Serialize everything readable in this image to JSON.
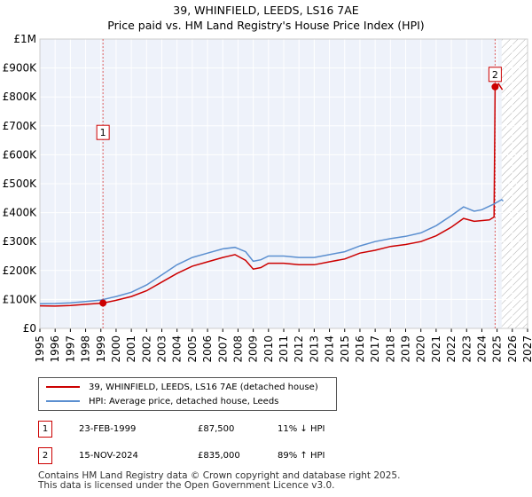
{
  "title": "39, WHINFIELD, LEEDS, LS16 7AE",
  "subtitle": "Price paid vs. HM Land Registry's House Price Index (HPI)",
  "colors": {
    "price": "#cc0000",
    "hpi": "#5b8fd0",
    "grid": "#dddddd",
    "plot_bg": "#eef2fa",
    "future_hatch": "#aaaaaa"
  },
  "chart_data": {
    "type": "line",
    "title": "39, WHINFIELD, LEEDS, LS16 7AE",
    "subtitle": "Price paid vs. HM Land Registry's House Price Index (HPI)",
    "xlim": [
      1995,
      2027
    ],
    "ylim": [
      0,
      1000000
    ],
    "y_ticks": [
      {
        "value": 0,
        "label": "£0"
      },
      {
        "value": 100000,
        "label": "£100K"
      },
      {
        "value": 200000,
        "label": "£200K"
      },
      {
        "value": 300000,
        "label": "£300K"
      },
      {
        "value": 400000,
        "label": "£400K"
      },
      {
        "value": 500000,
        "label": "£500K"
      },
      {
        "value": 600000,
        "label": "£600K"
      },
      {
        "value": 700000,
        "label": "£700K"
      },
      {
        "value": 800000,
        "label": "£800K"
      },
      {
        "value": 900000,
        "label": "£900K"
      },
      {
        "value": 1000000,
        "label": "£1M"
      }
    ],
    "x_ticks": [
      "1995",
      "1996",
      "1997",
      "1998",
      "1999",
      "2000",
      "2001",
      "2002",
      "2003",
      "2004",
      "2005",
      "2006",
      "2007",
      "2008",
      "2009",
      "2010",
      "2011",
      "2012",
      "2013",
      "2014",
      "2015",
      "2016",
      "2017",
      "2018",
      "2019",
      "2020",
      "2021",
      "2022",
      "2023",
      "2024",
      "2025",
      "2026",
      "2027"
    ],
    "forecast_start": 2025.3,
    "series": [
      {
        "name": "39, WHINFIELD, LEEDS, LS16 7AE (detached house)",
        "color": "#cc0000",
        "points": [
          [
            1995,
            78000
          ],
          [
            1996,
            77000
          ],
          [
            1997,
            79000
          ],
          [
            1998,
            83000
          ],
          [
            1999.14,
            87500
          ],
          [
            2000,
            97000
          ],
          [
            2001,
            110000
          ],
          [
            2002,
            130000
          ],
          [
            2003,
            160000
          ],
          [
            2004,
            190000
          ],
          [
            2005,
            215000
          ],
          [
            2006,
            230000
          ],
          [
            2007,
            245000
          ],
          [
            2007.8,
            255000
          ],
          [
            2008.5,
            235000
          ],
          [
            2009,
            205000
          ],
          [
            2009.5,
            210000
          ],
          [
            2010,
            225000
          ],
          [
            2011,
            225000
          ],
          [
            2012,
            220000
          ],
          [
            2013,
            220000
          ],
          [
            2014,
            230000
          ],
          [
            2015,
            240000
          ],
          [
            2016,
            260000
          ],
          [
            2017,
            270000
          ],
          [
            2018,
            283000
          ],
          [
            2019,
            290000
          ],
          [
            2020,
            300000
          ],
          [
            2021,
            320000
          ],
          [
            2022,
            350000
          ],
          [
            2022.8,
            380000
          ],
          [
            2023.5,
            370000
          ],
          [
            2024.5,
            375000
          ],
          [
            2024.8,
            385000
          ],
          [
            2024.87,
            835000
          ],
          [
            2025.1,
            845000
          ],
          [
            2025.35,
            825000
          ]
        ]
      },
      {
        "name": "HPI: Average price, detached house, Leeds",
        "color": "#5b8fd0",
        "points": [
          [
            1995,
            85000
          ],
          [
            1996,
            86000
          ],
          [
            1997,
            88000
          ],
          [
            1998,
            93000
          ],
          [
            1999,
            98000
          ],
          [
            2000,
            110000
          ],
          [
            2001,
            125000
          ],
          [
            2002,
            150000
          ],
          [
            2003,
            185000
          ],
          [
            2004,
            220000
          ],
          [
            2005,
            245000
          ],
          [
            2006,
            260000
          ],
          [
            2007,
            275000
          ],
          [
            2007.8,
            280000
          ],
          [
            2008.5,
            265000
          ],
          [
            2009,
            232000
          ],
          [
            2009.5,
            237000
          ],
          [
            2010,
            250000
          ],
          [
            2011,
            250000
          ],
          [
            2012,
            245000
          ],
          [
            2013,
            245000
          ],
          [
            2014,
            255000
          ],
          [
            2015,
            265000
          ],
          [
            2016,
            285000
          ],
          [
            2017,
            300000
          ],
          [
            2018,
            310000
          ],
          [
            2019,
            318000
          ],
          [
            2020,
            330000
          ],
          [
            2021,
            355000
          ],
          [
            2022,
            390000
          ],
          [
            2022.8,
            420000
          ],
          [
            2023.5,
            405000
          ],
          [
            2024,
            410000
          ],
          [
            2024.8,
            430000
          ],
          [
            2025.3,
            445000
          ],
          [
            2025.4,
            440000
          ]
        ]
      }
    ],
    "sales": [
      {
        "id": "1",
        "x": 1999.14,
        "y": 87500
      },
      {
        "id": "2",
        "x": 2024.87,
        "y": 835000
      }
    ]
  },
  "legend": {
    "items": [
      {
        "label": "39, WHINFIELD, LEEDS, LS16 7AE (detached house)"
      },
      {
        "label": "HPI: Average price, detached house, Leeds"
      }
    ]
  },
  "transactions": [
    {
      "id": "1",
      "date": "23-FEB-1999",
      "price": "£87,500",
      "hpi_change": "11% ↓ HPI"
    },
    {
      "id": "2",
      "date": "15-NOV-2024",
      "price": "£835,000",
      "hpi_change": "89% ↑ HPI"
    }
  ],
  "footer": {
    "line1": "Contains HM Land Registry data © Crown copyright and database right 2025.",
    "line2": "This data is licensed under the Open Government Licence v3.0."
  }
}
